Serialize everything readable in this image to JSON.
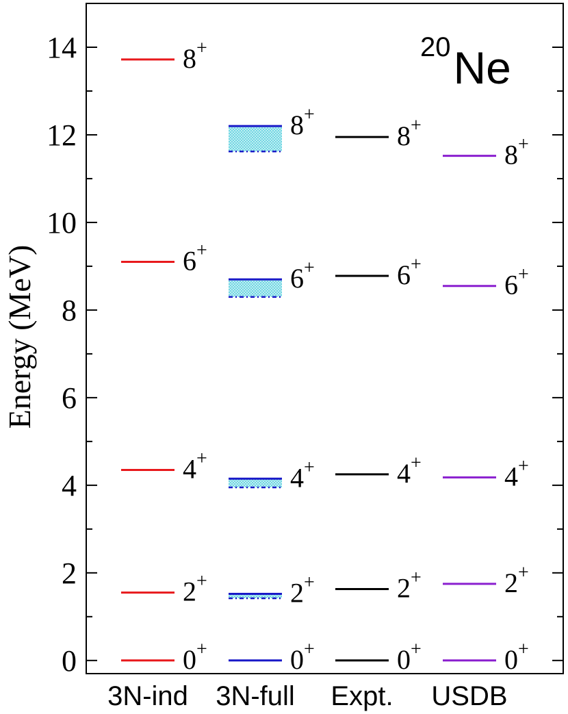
{
  "chart_data": {
    "type": "level-scheme",
    "nucleus_mass": "20",
    "nucleus_symbol": "Ne",
    "ylabel": "Energy (MeV)",
    "ylim": [
      -0.3,
      15
    ],
    "yticks_major": [
      0,
      2,
      4,
      6,
      8,
      10,
      12,
      14
    ],
    "yticks_minor_step": 1,
    "columns": [
      {
        "name": "3N-ind",
        "color": "#e8191c",
        "levels": [
          {
            "spin": "0",
            "parity": "+",
            "energy": 0.0
          },
          {
            "spin": "2",
            "parity": "+",
            "energy": 1.55
          },
          {
            "spin": "4",
            "parity": "+",
            "energy": 4.35
          },
          {
            "spin": "6",
            "parity": "+",
            "energy": 9.1
          },
          {
            "spin": "8",
            "parity": "+",
            "energy": 13.72
          }
        ]
      },
      {
        "name": "3N-full",
        "color": "#1919c8",
        "band_color": "#5fd0dd",
        "levels": [
          {
            "spin": "0",
            "parity": "+",
            "energy": 0.0,
            "lower": 0.0
          },
          {
            "spin": "2",
            "parity": "+",
            "energy": 1.52,
            "lower": 1.42
          },
          {
            "spin": "4",
            "parity": "+",
            "energy": 4.15,
            "lower": 3.95
          },
          {
            "spin": "6",
            "parity": "+",
            "energy": 8.7,
            "lower": 8.3
          },
          {
            "spin": "8",
            "parity": "+",
            "energy": 12.2,
            "lower": 11.62
          }
        ]
      },
      {
        "name": "Expt.",
        "color": "#000000",
        "levels": [
          {
            "spin": "0",
            "parity": "+",
            "energy": 0.0
          },
          {
            "spin": "2",
            "parity": "+",
            "energy": 1.63
          },
          {
            "spin": "4",
            "parity": "+",
            "energy": 4.25
          },
          {
            "spin": "6",
            "parity": "+",
            "energy": 8.78
          },
          {
            "spin": "8",
            "parity": "+",
            "energy": 11.95
          }
        ]
      },
      {
        "name": "USDB",
        "color": "#8a1fcf",
        "levels": [
          {
            "spin": "0",
            "parity": "+",
            "energy": 0.0
          },
          {
            "spin": "2",
            "parity": "+",
            "energy": 1.75
          },
          {
            "spin": "4",
            "parity": "+",
            "energy": 4.18
          },
          {
            "spin": "6",
            "parity": "+",
            "energy": 8.55
          },
          {
            "spin": "8",
            "parity": "+",
            "energy": 11.52
          }
        ]
      }
    ]
  }
}
